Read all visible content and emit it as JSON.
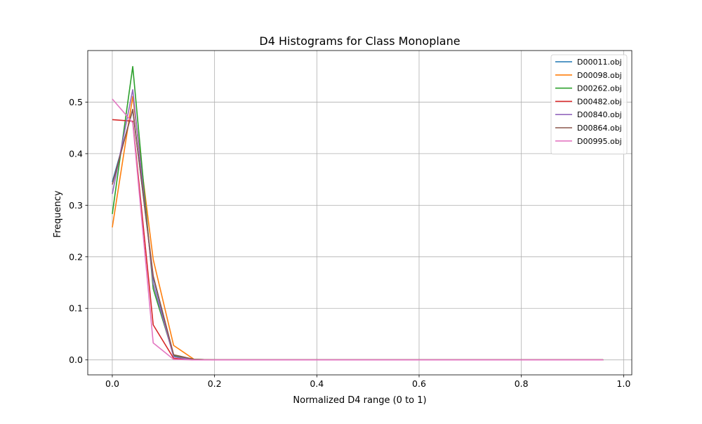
{
  "chart_data": {
    "type": "line",
    "title": "D4 Histograms for Class Monoplane",
    "xlabel": "Normalized D4 range (0 to 1)",
    "ylabel": "Frequency",
    "xlim": [
      -0.048,
      1.016
    ],
    "ylim": [
      -0.029,
      0.6
    ],
    "xticks": [
      0.0,
      0.2,
      0.4,
      0.6,
      0.8,
      1.0
    ],
    "xtick_labels": [
      "0.0",
      "0.2",
      "0.4",
      "0.6",
      "0.8",
      "1.0"
    ],
    "yticks": [
      0.0,
      0.1,
      0.2,
      0.3,
      0.4,
      0.5
    ],
    "ytick_labels": [
      "0.0",
      "0.1",
      "0.2",
      "0.3",
      "0.4",
      "0.5"
    ],
    "grid": true,
    "legend_position": "top-right",
    "x": [
      0.0,
      0.04,
      0.08,
      0.12,
      0.16,
      0.2,
      0.24,
      0.28,
      0.32,
      0.36,
      0.4,
      0.44,
      0.48,
      0.52,
      0.56,
      0.6,
      0.64,
      0.68,
      0.72,
      0.76,
      0.8,
      0.84,
      0.88,
      0.92,
      0.96
    ],
    "series": [
      {
        "name": "D00011.obj",
        "color": "#1f77b4",
        "values": [
          0.345,
          0.485,
          0.16,
          0.008,
          0.001,
          0,
          0,
          0,
          0,
          0,
          0,
          0,
          0,
          0,
          0,
          0,
          0,
          0,
          0,
          0,
          0,
          0,
          0,
          0,
          0
        ]
      },
      {
        "name": "D00098.obj",
        "color": "#ff7f0e",
        "values": [
          0.257,
          0.511,
          0.195,
          0.028,
          0.001,
          0,
          0,
          0,
          0,
          0,
          0,
          0,
          0,
          0,
          0,
          0,
          0,
          0,
          0,
          0,
          0,
          0,
          0,
          0,
          0
        ]
      },
      {
        "name": "D00262.obj",
        "color": "#2ca02c",
        "values": [
          0.283,
          0.569,
          0.138,
          0.009,
          0.001,
          0,
          0,
          0,
          0,
          0,
          0,
          0,
          0,
          0,
          0,
          0,
          0,
          0,
          0,
          0,
          0,
          0,
          0,
          0,
          0
        ]
      },
      {
        "name": "D00482.obj",
        "color": "#d62728",
        "values": [
          0.466,
          0.463,
          0.068,
          0.003,
          0.0,
          0,
          0,
          0,
          0,
          0,
          0,
          0,
          0,
          0,
          0,
          0,
          0,
          0,
          0,
          0,
          0,
          0,
          0,
          0,
          0
        ]
      },
      {
        "name": "D00840.obj",
        "color": "#9467bd",
        "values": [
          0.322,
          0.524,
          0.148,
          0.006,
          0.0,
          0,
          0,
          0,
          0,
          0,
          0,
          0,
          0,
          0,
          0,
          0,
          0,
          0,
          0,
          0,
          0,
          0,
          0,
          0,
          0
        ]
      },
      {
        "name": "D00864.obj",
        "color": "#8c564b",
        "values": [
          0.34,
          0.486,
          0.163,
          0.01,
          0.001,
          0,
          0,
          0,
          0,
          0,
          0,
          0,
          0,
          0,
          0,
          0,
          0,
          0,
          0,
          0,
          0,
          0,
          0,
          0,
          0
        ]
      },
      {
        "name": "D00995.obj",
        "color": "#e377c2",
        "values": [
          0.506,
          0.46,
          0.033,
          0.001,
          0.0,
          0,
          0,
          0,
          0,
          0,
          0,
          0,
          0,
          0,
          0,
          0,
          0,
          0,
          0,
          0,
          0,
          0,
          0,
          0,
          0
        ]
      }
    ]
  }
}
